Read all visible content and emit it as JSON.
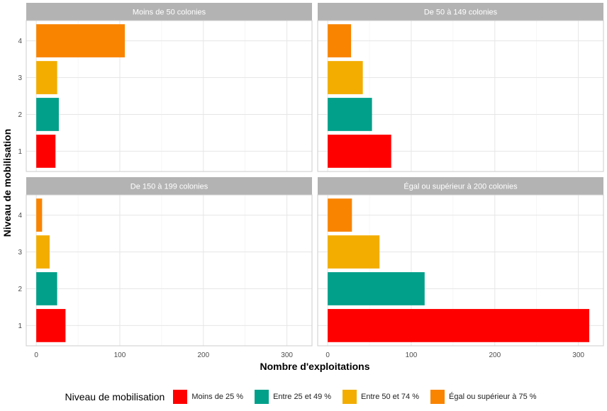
{
  "chart_data": {
    "type": "bar",
    "orientation": "horizontal",
    "xlabel": "Nombre d'exploitations",
    "ylabel": "Niveau de mobilisation",
    "xlim": [
      -12,
      330
    ],
    "ylim": [
      0.45,
      4.55
    ],
    "x_ticks": [
      0,
      100,
      200,
      300
    ],
    "y_ticks": [
      1,
      2,
      3,
      4
    ],
    "grid": true,
    "legend_position": "bottom",
    "panels": [
      {
        "title": "Moins de 50 colonies",
        "values": [
          23,
          27,
          25,
          106
        ]
      },
      {
        "title": "De 50 à 149 colonies",
        "values": [
          76,
          53,
          42,
          28
        ]
      },
      {
        "title": "De 150 à 199 colonies",
        "values": [
          35,
          25,
          16,
          7
        ]
      },
      {
        "title": "Égal ou supérieur à 200 colonies",
        "values": [
          313,
          116,
          62,
          29
        ]
      }
    ],
    "levels": [
      1,
      2,
      3,
      4
    ]
  },
  "legend": {
    "title": "Niveau de mobilisation",
    "items": [
      {
        "label": "Moins de 25 %",
        "color": "#FF0000"
      },
      {
        "label": "Entre 25 et 49 %",
        "color": "#00A08A"
      },
      {
        "label": "Entre 50 et 74 %",
        "color": "#F2AD00"
      },
      {
        "label": "Égal ou supérieur à 75 %",
        "color": "#F98400"
      }
    ]
  }
}
